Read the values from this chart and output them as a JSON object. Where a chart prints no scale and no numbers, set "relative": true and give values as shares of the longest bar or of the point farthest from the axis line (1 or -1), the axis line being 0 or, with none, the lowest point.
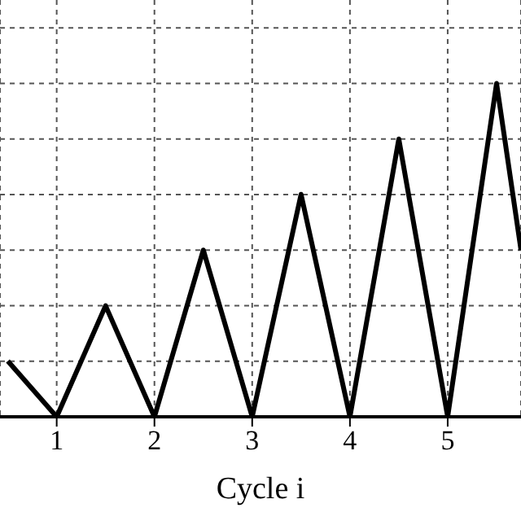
{
  "chart_data": {
    "type": "line",
    "xlabel": "Cycle i",
    "relative": true,
    "x": [
      0.5,
      1,
      1.5,
      2,
      2.5,
      3,
      3.5,
      4,
      4.5,
      5,
      5.5,
      5.75
    ],
    "series": [
      {
        "color": "#000000",
        "values": [
          0.167,
          0,
          0.333,
          0,
          0.5,
          0,
          0.667,
          0,
          0.833,
          0,
          1,
          0.5
        ]
      }
    ],
    "xlim": [
      0.42,
      5.75
    ],
    "xticks": [
      1,
      2,
      3,
      4,
      5
    ],
    "grid": true,
    "marker": "none",
    "line_style": "solid",
    "legend": false
  }
}
